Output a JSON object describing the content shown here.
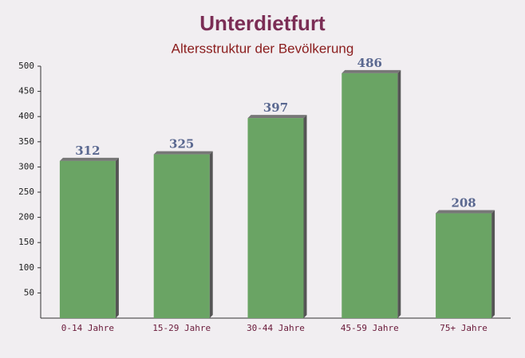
{
  "chart_data": {
    "type": "bar",
    "title": "Unterdietfurt",
    "subtitle": "Altersstruktur der Bevölkerung",
    "categories": [
      "0-14 Jahre",
      "15-29 Jahre",
      "30-44 Jahre",
      "45-59 Jahre",
      "75+ Jahre"
    ],
    "values": [
      312,
      325,
      397,
      486,
      208
    ],
    "color": "#6aa464",
    "ylim": [
      0,
      500
    ],
    "yticks": [
      50,
      100,
      150,
      200,
      250,
      300,
      350,
      400,
      450,
      500
    ],
    "grid": false
  }
}
